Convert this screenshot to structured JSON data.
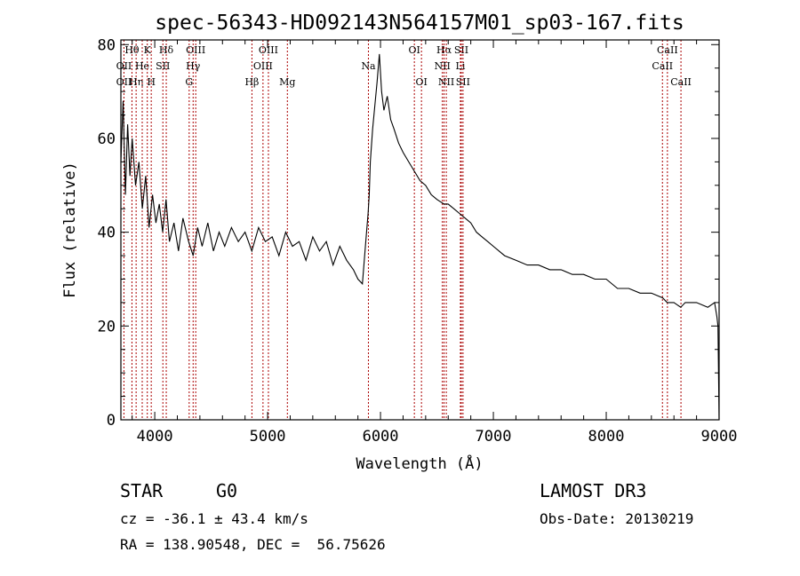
{
  "chart_data": {
    "type": "line",
    "title": "spec-56343-HD092143N564157M01_sp03-167.fits",
    "xlabel": "Wavelength (Å)",
    "ylabel": "Flux (relative)",
    "xlim": [
      3700,
      9000
    ],
    "ylim": [
      0,
      81
    ],
    "xticks": [
      4000,
      5000,
      6000,
      7000,
      8000,
      9000
    ],
    "yticks": [
      0,
      20,
      40,
      60,
      80
    ],
    "series": [
      {
        "name": "flux",
        "color": "#000000",
        "x": [
          3700,
          3720,
          3740,
          3760,
          3780,
          3800,
          3830,
          3860,
          3890,
          3920,
          3950,
          3980,
          4010,
          4040,
          4070,
          4100,
          4130,
          4170,
          4210,
          4250,
          4300,
          4340,
          4380,
          4420,
          4470,
          4520,
          4570,
          4620,
          4680,
          4740,
          4800,
          4860,
          4920,
          4980,
          5040,
          5100,
          5160,
          5220,
          5280,
          5340,
          5400,
          5460,
          5520,
          5580,
          5640,
          5700,
          5760,
          5800,
          5840,
          5870,
          5890,
          5900,
          5910,
          5930,
          5950,
          5970,
          5990,
          6010,
          6030,
          6060,
          6090,
          6120,
          6160,
          6200,
          6250,
          6300,
          6350,
          6400,
          6450,
          6500,
          6563,
          6600,
          6650,
          6700,
          6750,
          6800,
          6850,
          6900,
          6950,
          7000,
          7100,
          7200,
          7300,
          7400,
          7500,
          7600,
          7700,
          7800,
          7900,
          8000,
          8100,
          8200,
          8300,
          8400,
          8500,
          8540,
          8600,
          8660,
          8700,
          8800,
          8900,
          8960,
          8980,
          8990,
          9000
        ],
        "y": [
          55,
          68,
          48,
          63,
          52,
          60,
          50,
          55,
          45,
          52,
          41,
          48,
          42,
          46,
          40,
          47,
          38,
          42,
          36,
          43,
          38,
          35,
          41,
          37,
          42,
          36,
          40,
          37,
          41,
          38,
          40,
          36,
          41,
          38,
          39,
          35,
          40,
          37,
          38,
          34,
          39,
          36,
          38,
          33,
          37,
          34,
          32,
          30,
          29,
          38,
          44,
          48,
          55,
          62,
          67,
          72,
          78,
          70,
          66,
          69,
          64,
          62,
          59,
          57,
          55,
          53,
          51,
          50,
          48,
          47,
          46,
          46,
          45,
          44,
          43,
          42,
          40,
          39,
          38,
          37,
          35,
          34,
          33,
          33,
          32,
          32,
          31,
          31,
          30,
          30,
          28,
          28,
          27,
          27,
          26,
          25,
          25,
          24,
          25,
          25,
          24,
          25,
          22,
          20,
          0
        ]
      }
    ],
    "line_ids": [
      {
        "label": "Hθ",
        "wl": 3798,
        "row": 0
      },
      {
        "label": "OII",
        "wl": 3727,
        "row": 1
      },
      {
        "label": "OII",
        "wl": 3727,
        "row": 2
      },
      {
        "label": "Hη",
        "wl": 3835,
        "row": 2
      },
      {
        "label": "He",
        "wl": 3889,
        "row": 1
      },
      {
        "label": "K",
        "wl": 3934,
        "row": 0
      },
      {
        "label": "H",
        "wl": 3969,
        "row": 2
      },
      {
        "label": "SII",
        "wl": 4072,
        "row": 1
      },
      {
        "label": "Hδ",
        "wl": 4102,
        "row": 0
      },
      {
        "label": "OIII",
        "wl": 4363,
        "row": 0
      },
      {
        "label": "Hγ",
        "wl": 4340,
        "row": 1
      },
      {
        "label": "G",
        "wl": 4305,
        "row": 2
      },
      {
        "label": "OIII",
        "wl": 5007,
        "row": 0
      },
      {
        "label": "OIII",
        "wl": 4959,
        "row": 1
      },
      {
        "label": "Hβ",
        "wl": 4861,
        "row": 2
      },
      {
        "label": "Mg",
        "wl": 5175,
        "row": 2
      },
      {
        "label": "Na",
        "wl": 5893,
        "row": 1
      },
      {
        "label": "OI",
        "wl": 6300,
        "row": 0
      },
      {
        "label": "OI",
        "wl": 6363,
        "row": 2
      },
      {
        "label": "Hα",
        "wl": 6563,
        "row": 0
      },
      {
        "label": "NII",
        "wl": 6548,
        "row": 1
      },
      {
        "label": "NII",
        "wl": 6583,
        "row": 2
      },
      {
        "label": "SII",
        "wl": 6716,
        "row": 0
      },
      {
        "label": "Li",
        "wl": 6708,
        "row": 1
      },
      {
        "label": "SII",
        "wl": 6731,
        "row": 2
      },
      {
        "label": "CaII",
        "wl": 8542,
        "row": 0
      },
      {
        "label": "CaII",
        "wl": 8498,
        "row": 1
      },
      {
        "label": "CaII",
        "wl": 8662,
        "row": 2
      }
    ],
    "line_id_color": "#aa0000"
  },
  "footer": {
    "class_label": "STAR",
    "subclass": "G0",
    "survey": "LAMOST DR3",
    "cz": "cz = -36.1 ± 43.4 km/s",
    "obs_date": "Obs-Date: 20130219",
    "coords": "RA = 138.90548, DEC =  56.75626"
  }
}
